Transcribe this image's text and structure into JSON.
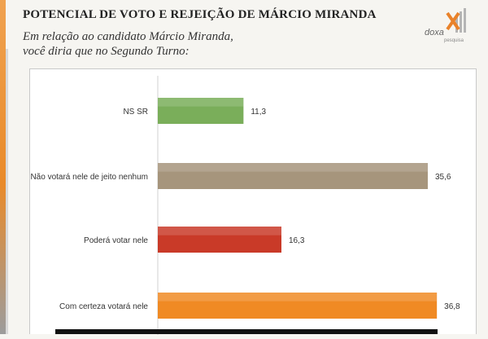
{
  "header": {
    "title": "POTENCIAL DE VOTO E REJEIÇÃO DE MÁRCIO MIRANDA",
    "subtitle_line1": "Em relação ao candidato Márcio Miranda,",
    "subtitle_line2": "você diria que no Segundo Turno:"
  },
  "logo": {
    "text": "doxa",
    "sub": "pesquisa"
  },
  "chart_data": {
    "type": "bar",
    "orientation": "horizontal",
    "categories": [
      "NS SR",
      "Não votará nele de jeito nenhum",
      "Poderá votar nele",
      "Com certeza votará nele"
    ],
    "values": [
      11.3,
      35.6,
      16.3,
      36.8
    ],
    "value_labels": [
      "11,3",
      "35,6",
      "16,3",
      "36,8"
    ],
    "colors": [
      "#7aae5a",
      "#a6957c",
      "#c93a28",
      "#f08a24"
    ],
    "xlim": [
      0,
      40
    ],
    "grid": false,
    "legend": "none"
  }
}
